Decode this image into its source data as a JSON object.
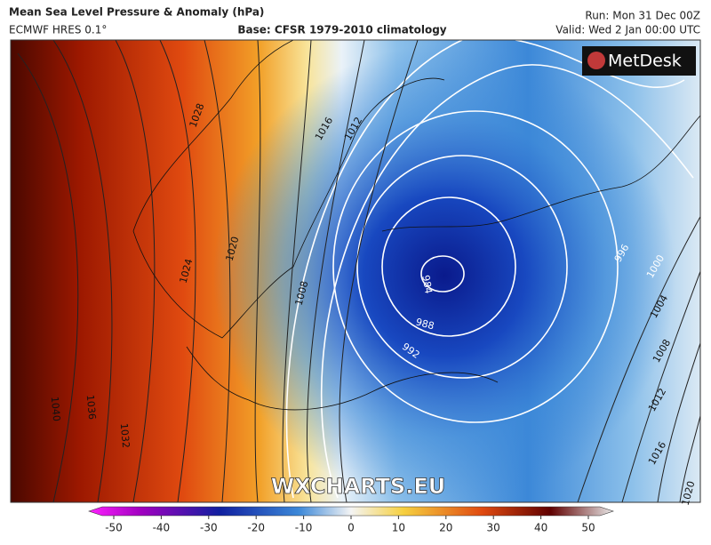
{
  "header": {
    "title": "Mean Sea Level Pressure & Anomaly (hPa)",
    "model": "ECMWF HRES 0.1°",
    "base": "Base: CFSR 1979-2010 climatology",
    "run": "Run: Mon 31 Dec 00Z",
    "valid": "Valid: Wed 2 Jan 00:00 UTC"
  },
  "logo": "MetDesk",
  "watermark": "WXCHARTS.EU",
  "contour_labels": [
    1028,
    1016,
    1012,
    1020,
    1024,
    1008,
    1040,
    1036,
    1032,
    984,
    988,
    992,
    996,
    1000,
    1004,
    1008,
    1012,
    1016,
    1020
  ],
  "colorbar": {
    "ticks": [
      -50,
      -40,
      -30,
      -20,
      -10,
      0,
      10,
      20,
      30,
      40,
      50
    ]
  }
}
